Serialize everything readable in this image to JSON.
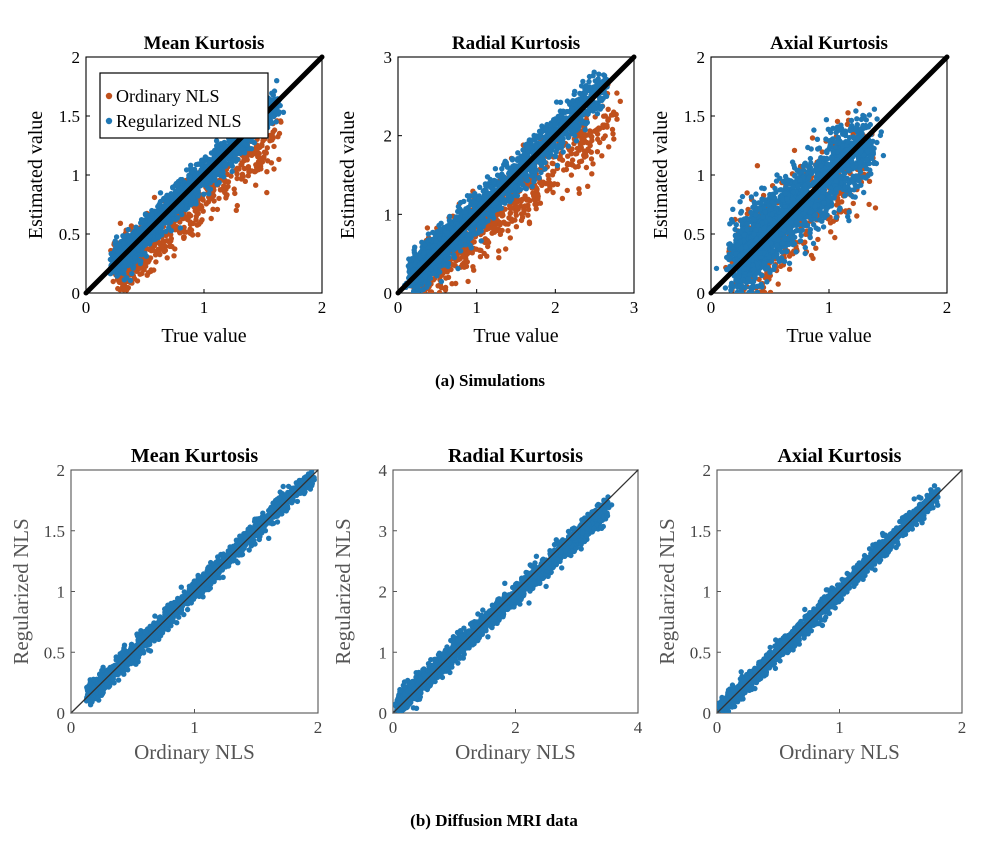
{
  "colors": {
    "ordinary": "#c0501c",
    "regularized": "#1f77b4",
    "identity_top": "#000000",
    "identity_bottom": "#333333"
  },
  "captions": {
    "a": "(a) Simulations",
    "b": "(b) Diffusion MRI data"
  },
  "legend": {
    "ordinary": "Ordinary NLS",
    "regularized": "Regularized NLS"
  },
  "chart_data": [
    {
      "id": "sim-mean",
      "type": "scatter",
      "title": "Mean Kurtosis",
      "xlabel": "True value",
      "ylabel": "Estimated value",
      "xlim": [
        0,
        2
      ],
      "ylim": [
        0,
        2
      ],
      "xticks": [
        0,
        1,
        2
      ],
      "yticks": [
        0,
        0.5,
        1,
        1.5,
        2
      ],
      "xticklabels": [
        "0",
        "1",
        "2"
      ],
      "yticklabels": [
        "0",
        "0.5",
        "1",
        "1.5",
        "2"
      ],
      "identity_line": true,
      "series": [
        {
          "name": "Ordinary NLS",
          "color": "ordinary",
          "n": 650,
          "xmin": 0.28,
          "xmax": 1.6,
          "slope": 0.9,
          "offset": -0.06,
          "noise": 0.13,
          "seed": 11
        },
        {
          "name": "Regularized NLS",
          "color": "regularized",
          "n": 1600,
          "xmin": 0.25,
          "xmax": 1.62,
          "slope": 1.0,
          "offset": 0.0,
          "noise": 0.07,
          "seed": 12
        }
      ]
    },
    {
      "id": "sim-radial",
      "type": "scatter",
      "title": "Radial Kurtosis",
      "xlabel": "True value",
      "ylabel": "Estimated value",
      "xlim": [
        0,
        3
      ],
      "ylim": [
        0,
        3
      ],
      "xticks": [
        0,
        1,
        2,
        3
      ],
      "yticks": [
        0,
        1,
        2,
        3
      ],
      "xticklabels": [
        "0",
        "1",
        "2",
        "3"
      ],
      "yticklabels": [
        "0",
        "1",
        "2",
        "3"
      ],
      "identity_line": true,
      "series": [
        {
          "name": "Ordinary NLS",
          "color": "ordinary",
          "n": 700,
          "xmin": 0.3,
          "xmax": 2.75,
          "slope": 0.85,
          "offset": -0.08,
          "noise": 0.2,
          "seed": 21
        },
        {
          "name": "Regularized NLS",
          "color": "regularized",
          "n": 1700,
          "xmin": 0.2,
          "xmax": 2.6,
          "slope": 1.0,
          "offset": 0.02,
          "noise": 0.13,
          "seed": 22
        }
      ]
    },
    {
      "id": "sim-axial",
      "type": "scatter",
      "title": "Axial Kurtosis",
      "xlabel": "True value",
      "ylabel": "Estimated value",
      "xlim": [
        0,
        2
      ],
      "ylim": [
        0,
        2
      ],
      "xticks": [
        0,
        1,
        2
      ],
      "yticks": [
        0,
        0.5,
        1,
        1.5,
        2
      ],
      "xticklabels": [
        "0",
        "1",
        "2"
      ],
      "yticklabels": [
        "0",
        "0.5",
        "1",
        "1.5",
        "2"
      ],
      "identity_line": true,
      "series": [
        {
          "name": "Ordinary NLS",
          "color": "ordinary",
          "n": 500,
          "xmin": 0.25,
          "xmax": 1.3,
          "slope": 0.85,
          "offset": 0.02,
          "noise": 0.2,
          "seed": 31
        },
        {
          "name": "Regularized NLS",
          "color": "regularized",
          "n": 1800,
          "xmin": 0.22,
          "xmax": 1.35,
          "slope": 0.9,
          "offset": 0.08,
          "noise": 0.16,
          "seed": 32
        }
      ]
    },
    {
      "id": "mri-mean",
      "type": "scatter",
      "title": "Mean Kurtosis",
      "xlabel": "Ordinary NLS",
      "ylabel": "Regularized NLS",
      "xlim": [
        0,
        2
      ],
      "ylim": [
        0,
        2
      ],
      "xticks": [
        0,
        1,
        2
      ],
      "yticks": [
        0,
        0.5,
        1,
        1.5,
        2
      ],
      "xticklabels": [
        "0",
        "1",
        "2"
      ],
      "yticklabels": [
        "0",
        "0.5",
        "1",
        "1.5",
        "2"
      ],
      "identity_line": true,
      "series": [
        {
          "name": "Regularized NLS",
          "color": "regularized",
          "n": 1800,
          "xmin": 0.15,
          "xmax": 1.95,
          "slope": 1.0,
          "offset": 0.0,
          "noise": 0.04,
          "seed": 41
        }
      ]
    },
    {
      "id": "mri-radial",
      "type": "scatter",
      "title": "Radial Kurtosis",
      "xlabel": "Ordinary NLS",
      "ylabel": "Regularized NLS",
      "xlim": [
        0,
        4
      ],
      "ylim": [
        0,
        4
      ],
      "xticks": [
        0,
        2,
        4
      ],
      "yticks": [
        0,
        1,
        2,
        3,
        4
      ],
      "xticklabels": [
        "0",
        "2",
        "4"
      ],
      "yticklabels": [
        "0",
        "1",
        "2",
        "3",
        "4"
      ],
      "identity_line": true,
      "series": [
        {
          "name": "Regularized NLS",
          "color": "regularized",
          "n": 1800,
          "xmin": 0.1,
          "xmax": 3.5,
          "slope": 0.95,
          "offset": 0.05,
          "noise": 0.09,
          "seed": 51
        }
      ]
    },
    {
      "id": "mri-axial",
      "type": "scatter",
      "title": "Axial Kurtosis",
      "xlabel": "Ordinary NLS",
      "ylabel": "Regularized NLS",
      "xlim": [
        0,
        2
      ],
      "ylim": [
        0,
        2
      ],
      "xticks": [
        0,
        1,
        2
      ],
      "yticks": [
        0,
        0.5,
        1,
        1.5,
        2
      ],
      "xticklabels": [
        "0",
        "1",
        "2"
      ],
      "yticklabels": [
        "0",
        "0.5",
        "1",
        "1.5",
        "2"
      ],
      "identity_line": true,
      "series": [
        {
          "name": "Regularized NLS",
          "color": "regularized",
          "n": 1500,
          "xmin": 0.02,
          "xmax": 1.8,
          "slope": 1.0,
          "offset": 0.0,
          "noise": 0.04,
          "seed": 61
        }
      ]
    }
  ]
}
